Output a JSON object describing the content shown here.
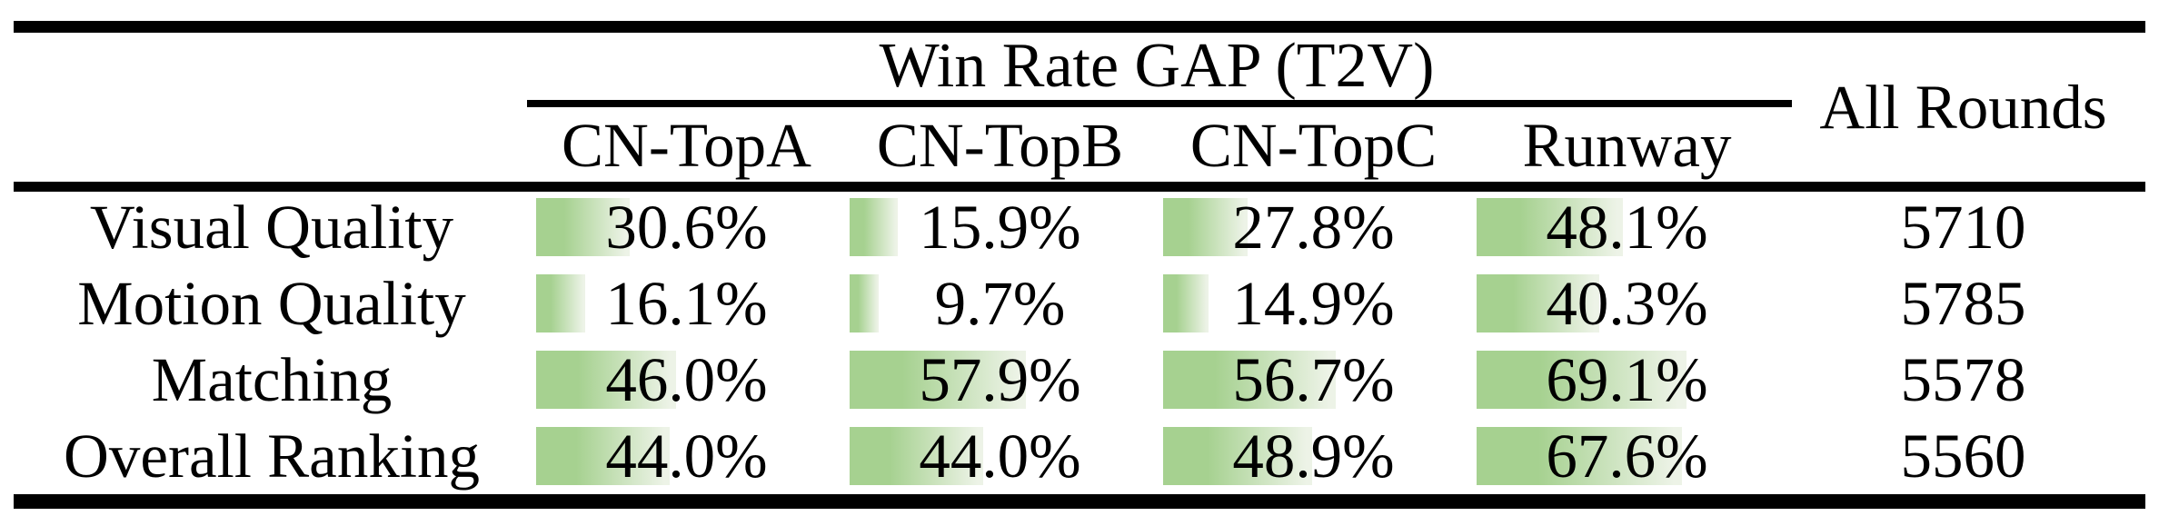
{
  "table": {
    "group_header": "Win Rate GAP (T2V)",
    "all_rounds_header": "All Rounds",
    "columns": [
      "CN-TopA",
      "CN-TopB",
      "CN-TopC",
      "Runway"
    ],
    "rows": [
      {
        "label": "Visual Quality",
        "cells": [
          "30.6%",
          "15.9%",
          "27.8%",
          "48.1%"
        ],
        "all_rounds": "5710"
      },
      {
        "label": "Motion Quality",
        "cells": [
          "16.1%",
          "9.7%",
          "14.9%",
          "40.3%"
        ],
        "all_rounds": "5785"
      },
      {
        "label": "Matching",
        "cells": [
          "46.0%",
          "57.9%",
          "56.7%",
          "69.1%"
        ],
        "all_rounds": "5578"
      },
      {
        "label": "Overall Ranking",
        "cells": [
          "44.0%",
          "44.0%",
          "48.9%",
          "67.6%"
        ],
        "all_rounds": "5560"
      }
    ]
  },
  "chart_data": {
    "type": "table",
    "title": "Win Rate GAP (T2V)",
    "columns": [
      "CN-TopA",
      "CN-TopB",
      "CN-TopC",
      "Runway",
      "All Rounds"
    ],
    "row_labels": [
      "Visual Quality",
      "Motion Quality",
      "Matching",
      "Overall Ranking"
    ],
    "win_rate_gap_percent": [
      [
        30.6,
        15.9,
        27.8,
        48.1
      ],
      [
        16.1,
        9.7,
        14.9,
        40.3
      ],
      [
        46.0,
        57.9,
        56.7,
        69.1
      ],
      [
        44.0,
        44.0,
        48.9,
        67.6
      ]
    ],
    "all_rounds": [
      5710,
      5785,
      5578,
      5560
    ],
    "bar_scale_percent_max": 100
  },
  "colors": {
    "bar_green_start": "#a6d190",
    "bar_green_end": "#edf3e7",
    "rule_black": "#000000",
    "text": "#000000",
    "background": "#ffffff"
  }
}
